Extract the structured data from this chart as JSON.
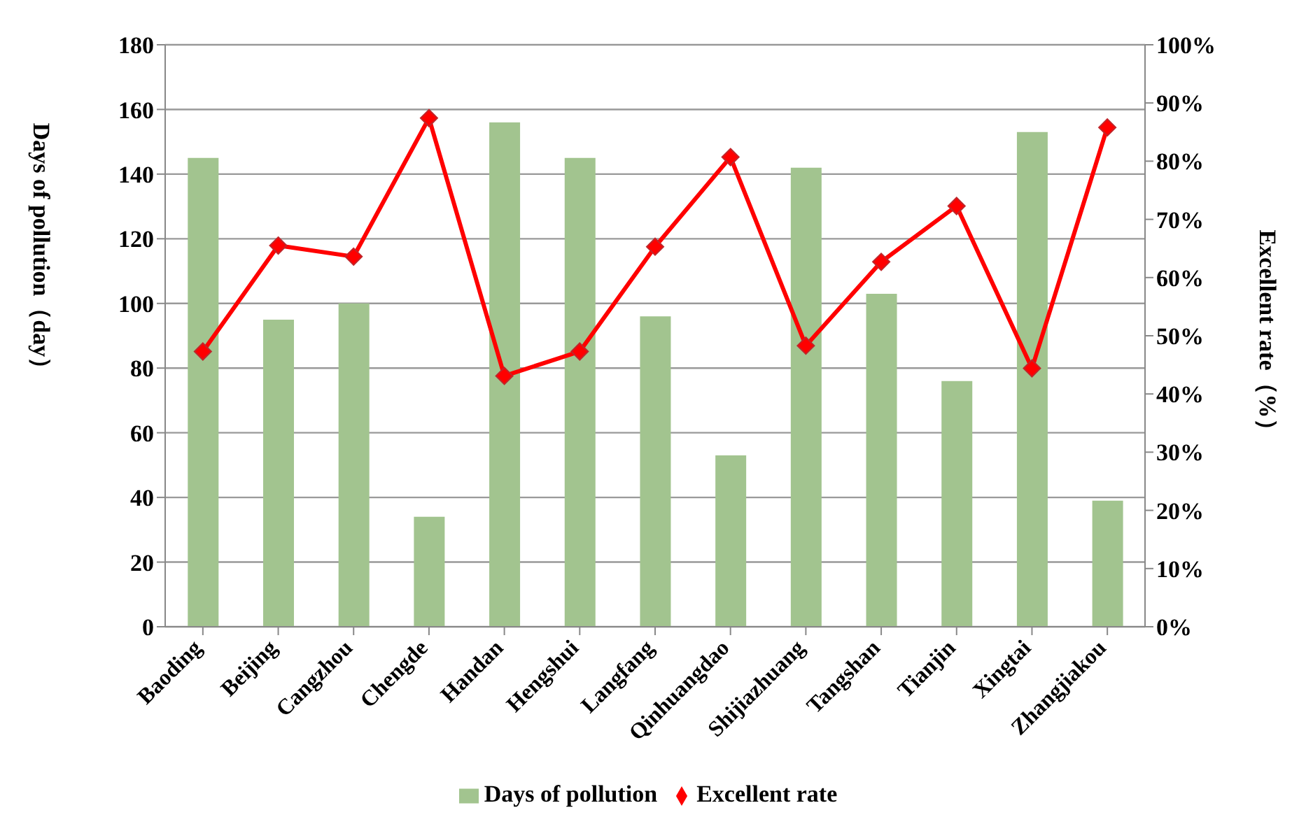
{
  "chart_data": {
    "type": "bar",
    "categories": [
      "Baoding",
      "Beijing",
      "Cangzhou",
      "Chengde",
      "Handan",
      "Hengshui",
      "Langfang",
      "Qinhuangdao",
      "Shijiazhuang",
      "Tangshan",
      "Tianjin",
      "Xingtai",
      "Zhangjiakou"
    ],
    "series": [
      {
        "name": "Days of pollution",
        "color": "#a2c48f",
        "values": [
          145,
          95,
          100,
          34,
          156,
          145,
          96,
          53,
          142,
          103,
          76,
          153,
          39
        ]
      },
      {
        "name": "Excellent rate",
        "type": "line",
        "axis": "y2",
        "color": "#ff0000",
        "marker": "diamond",
        "values": [
          47.3,
          65.5,
          63.6,
          87.4,
          43.1,
          47.3,
          65.3,
          80.7,
          48.3,
          62.7,
          72.3,
          44.4,
          85.8
        ]
      }
    ],
    "ylabel": "Days of pollution（day）",
    "y2label": "Excellent rate（%）",
    "ylim": [
      0,
      180
    ],
    "yticks": [
      0,
      20,
      40,
      60,
      80,
      100,
      120,
      140,
      160,
      180
    ],
    "y2lim": [
      0,
      100
    ],
    "y2ticks": [
      {
        "value": 0,
        "label": "0%"
      },
      {
        "value": 10,
        "label": "10%"
      },
      {
        "value": 20,
        "label": "20%"
      },
      {
        "value": 30,
        "label": "30%"
      },
      {
        "value": 40,
        "label": "40%"
      },
      {
        "value": 50,
        "label": "50%"
      },
      {
        "value": 60,
        "label": "60%"
      },
      {
        "value": 70,
        "label": "70%"
      },
      {
        "value": 80,
        "label": "80%"
      },
      {
        "value": 90,
        "label": "90%"
      },
      {
        "value": 100,
        "label": "100%"
      }
    ],
    "grid": "y",
    "legend": "bottom"
  }
}
